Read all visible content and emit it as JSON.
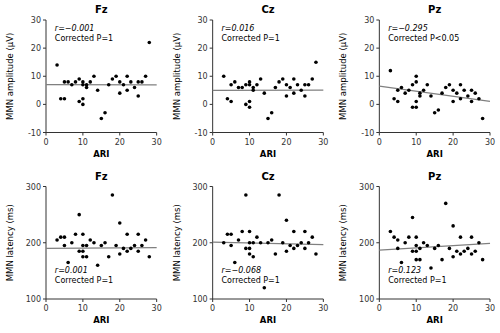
{
  "chart_data": [
    {
      "type": "scatter",
      "title": "Fz",
      "x_label": "ARI",
      "y_label": "MMN amplitude (μV)",
      "x": [
        3,
        4,
        5,
        5,
        6,
        7,
        8,
        9,
        9,
        10,
        10,
        10,
        10,
        11,
        11,
        12,
        13,
        14,
        15,
        16,
        17,
        18,
        19,
        20,
        20,
        21,
        22,
        22,
        23,
        24,
        25,
        25,
        26,
        27,
        28
      ],
      "values": [
        14,
        2,
        8,
        2,
        8,
        7,
        8,
        9,
        1,
        7,
        0,
        8,
        2,
        7,
        6,
        8,
        10,
        5,
        -5,
        -3,
        7,
        9,
        10,
        8,
        4,
        7,
        10,
        5,
        8,
        6,
        8,
        3,
        8,
        10,
        22
      ],
      "color": "#000000",
      "fit_line": {
        "x": [
          0,
          30
        ],
        "values": [
          7.0,
          6.94
        ],
        "color": "#808080"
      },
      "annotations": [
        "r=−0.001",
        "Corrected P=1"
      ],
      "xlim": [
        0,
        30
      ],
      "ylim": [
        -10,
        30
      ],
      "xticks": [
        0,
        10,
        20,
        30
      ],
      "yticks": [
        -10,
        0,
        10,
        20,
        30
      ],
      "grid": false
    },
    {
      "type": "scatter",
      "title": "Cz",
      "x_label": "ARI",
      "y_label": "MMN amplitude (μV)",
      "x": [
        3,
        4,
        5,
        5,
        6,
        7,
        8,
        9,
        9,
        10,
        10,
        10,
        10,
        11,
        11,
        12,
        13,
        14,
        15,
        16,
        17,
        18,
        19,
        20,
        20,
        21,
        22,
        22,
        23,
        24,
        25,
        25,
        26,
        27,
        28
      ],
      "values": [
        10,
        2,
        7,
        1,
        8,
        6,
        6,
        7,
        0,
        7,
        -1,
        8,
        1,
        6,
        5,
        7,
        9,
        4,
        -5,
        -3,
        6,
        8,
        9,
        7,
        3,
        6,
        9,
        4,
        7,
        5,
        7,
        3,
        7,
        9,
        15
      ],
      "color": "#000000",
      "fit_line": {
        "x": [
          0,
          30
        ],
        "values": [
          5.0,
          5.09
        ],
        "color": "#808080"
      },
      "annotations": [
        "r=0.016",
        "Corrected P=1"
      ],
      "xlim": [
        0,
        30
      ],
      "ylim": [
        -10,
        30
      ],
      "xticks": [
        0,
        10,
        20,
        30
      ],
      "yticks": [
        -10,
        0,
        10,
        20,
        30
      ],
      "grid": false
    },
    {
      "type": "scatter",
      "title": "Pz",
      "x_label": "ARI",
      "y_label": "MMN amplitude (μV)",
      "x": [
        3,
        4,
        5,
        5,
        6,
        7,
        8,
        9,
        9,
        10,
        10,
        10,
        10,
        11,
        11,
        12,
        13,
        14,
        15,
        16,
        17,
        18,
        19,
        20,
        20,
        21,
        22,
        22,
        23,
        24,
        25,
        25,
        26,
        27,
        28
      ],
      "values": [
        12,
        2,
        5,
        1,
        6,
        4,
        5,
        7,
        -1,
        8,
        -1,
        10,
        1,
        4,
        3,
        5,
        7,
        3,
        -3,
        -2,
        4,
        6,
        7,
        5,
        1,
        4,
        7,
        2,
        5,
        3,
        5,
        1,
        4,
        2,
        -5
      ],
      "color": "#000000",
      "fit_line": {
        "x": [
          0,
          30
        ],
        "values": [
          6.5,
          1.1
        ],
        "color": "#808080"
      },
      "annotations": [
        "r=−0.295",
        "Corrected P<0.05"
      ],
      "xlim": [
        0,
        30
      ],
      "ylim": [
        -10,
        30
      ],
      "xticks": [
        0,
        10,
        20,
        30
      ],
      "yticks": [
        -10,
        0,
        10,
        20,
        30
      ],
      "grid": false
    },
    {
      "type": "scatter",
      "title": "Fz",
      "x_label": "ARI",
      "y_label": "MMN latency (ms)",
      "x": [
        3,
        4,
        5,
        5,
        6,
        7,
        8,
        9,
        9,
        10,
        10,
        10,
        10,
        11,
        11,
        12,
        13,
        14,
        15,
        16,
        17,
        18,
        19,
        20,
        20,
        21,
        22,
        22,
        23,
        24,
        25,
        25,
        26,
        27,
        28
      ],
      "values": [
        205,
        210,
        195,
        210,
        165,
        200,
        215,
        185,
        250,
        195,
        175,
        185,
        215,
        195,
        175,
        205,
        200,
        160,
        195,
        200,
        175,
        285,
        195,
        235,
        180,
        190,
        215,
        185,
        190,
        195,
        215,
        185,
        195,
        205,
        175
      ],
      "color": "#000000",
      "fit_line": {
        "x": [
          0,
          30
        ],
        "values": [
          190.0,
          191.5
        ],
        "color": "#808080"
      },
      "annotations": [
        "r=0.001",
        "Corrected P=1"
      ],
      "xlim": [
        0,
        30
      ],
      "ylim": [
        100,
        300
      ],
      "xticks": [
        0,
        10,
        20,
        30
      ],
      "yticks": [
        100,
        200,
        300
      ],
      "grid": false
    },
    {
      "type": "scatter",
      "title": "Cz",
      "x_label": "ARI",
      "y_label": "MMN latency (ms)",
      "x": [
        3,
        4,
        5,
        5,
        6,
        7,
        8,
        9,
        9,
        10,
        10,
        10,
        10,
        11,
        11,
        12,
        13,
        14,
        15,
        16,
        17,
        18,
        19,
        20,
        20,
        21,
        22,
        22,
        23,
        24,
        25,
        25,
        26,
        27,
        28
      ],
      "values": [
        200,
        215,
        195,
        215,
        165,
        205,
        220,
        190,
        285,
        200,
        180,
        190,
        220,
        200,
        175,
        210,
        200,
        120,
        200,
        205,
        180,
        285,
        200,
        240,
        185,
        195,
        220,
        190,
        195,
        200,
        220,
        190,
        200,
        210,
        180
      ],
      "color": "#000000",
      "fit_line": {
        "x": [
          0,
          30
        ],
        "values": [
          201.0,
          196.5
        ],
        "color": "#808080"
      },
      "annotations": [
        "r=−0.068",
        "Corrected P=1"
      ],
      "xlim": [
        0,
        30
      ],
      "ylim": [
        100,
        300
      ],
      "xticks": [
        0,
        10,
        20,
        30
      ],
      "yticks": [
        100,
        200,
        300
      ],
      "grid": false
    },
    {
      "type": "scatter",
      "title": "Pz",
      "x_label": "ARI",
      "y_label": "MMN latency (ms)",
      "x": [
        3,
        4,
        5,
        5,
        6,
        7,
        8,
        9,
        9,
        10,
        10,
        10,
        10,
        11,
        11,
        12,
        13,
        14,
        15,
        16,
        17,
        18,
        19,
        20,
        20,
        21,
        22,
        22,
        23,
        24,
        25,
        25,
        26,
        27,
        28
      ],
      "values": [
        220,
        210,
        190,
        205,
        165,
        200,
        210,
        185,
        245,
        195,
        170,
        185,
        210,
        190,
        170,
        200,
        195,
        155,
        190,
        195,
        170,
        270,
        190,
        230,
        175,
        185,
        210,
        180,
        185,
        190,
        210,
        180,
        185,
        200,
        170
      ],
      "color": "#000000",
      "fit_line": {
        "x": [
          0,
          30
        ],
        "values": [
          187.0,
          199.0
        ],
        "color": "#808080"
      },
      "annotations": [
        "r=0.123",
        "Corrected P=1"
      ],
      "xlim": [
        0,
        30
      ],
      "ylim": [
        100,
        300
      ],
      "xticks": [
        0,
        10,
        20,
        30
      ],
      "yticks": [
        100,
        200,
        300
      ],
      "grid": false
    }
  ]
}
